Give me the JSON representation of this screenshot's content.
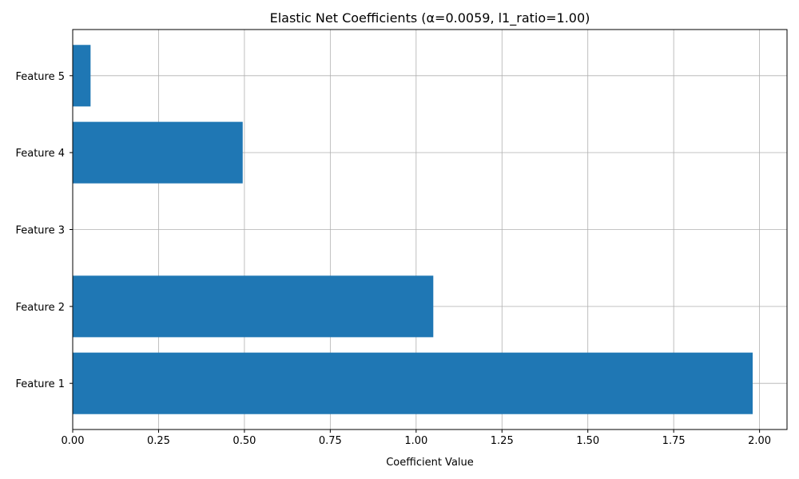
{
  "chart_data": {
    "type": "bar",
    "orientation": "horizontal",
    "title": "Elastic Net Coefficients (α=0.0059, l1_ratio=1.00)",
    "xlabel": "Coefficient Value",
    "ylabel": "",
    "categories": [
      "Feature 1",
      "Feature 2",
      "Feature 3",
      "Feature 4",
      "Feature 5"
    ],
    "values": [
      1.98,
      1.05,
      0.0,
      0.495,
      0.052
    ],
    "xlim": [
      0,
      2.08
    ],
    "xticks": [
      0.0,
      0.25,
      0.5,
      0.75,
      1.0,
      1.25,
      1.5,
      1.75,
      2.0
    ],
    "xtick_labels": [
      "0.00",
      "0.25",
      "0.50",
      "0.75",
      "1.00",
      "1.25",
      "1.50",
      "1.75",
      "2.00"
    ],
    "grid": true,
    "bar_color": "#1f77b4",
    "grid_color": "#b0b0b0"
  }
}
